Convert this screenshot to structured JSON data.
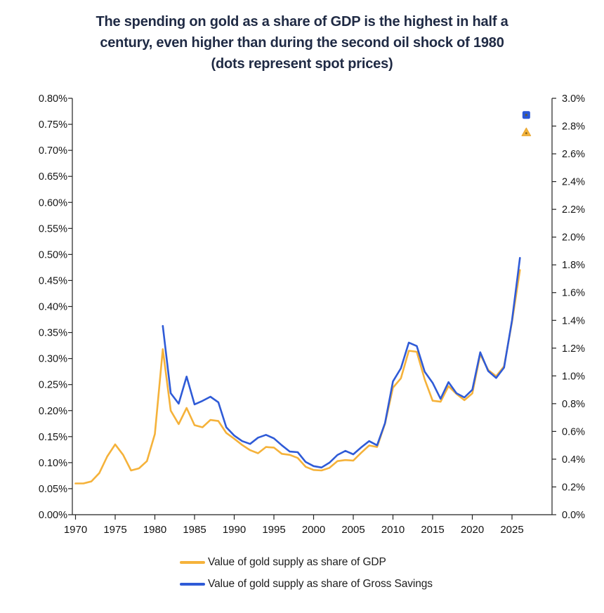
{
  "title": {
    "full": "The spending on gold as a share of GDP is the highest in half a century, even higher than during the second oil shock of 1980 (dots represent spot prices)",
    "lines": [
      "The spending on gold as a share of GDP is the highest in half a",
      "century, even higher than during the second oil shock of 1980",
      "(dots represent spot prices)"
    ]
  },
  "chart_data": {
    "type": "line",
    "title": "The spending on gold as a share of GDP is the highest in half a century, even higher than during the second oil shock of 1980 (dots represent spot prices)",
    "grid": "off",
    "x_ticks": [
      "1970",
      "1975",
      "1980",
      "1985",
      "1990",
      "1995",
      "2000",
      "2005",
      "2010",
      "2015",
      "2020",
      "2025"
    ],
    "left_axis": {
      "range": [
        0,
        0.8
      ],
      "tick_labels": [
        "0.00%",
        "0.05%",
        "0.10%",
        "0.15%",
        "0.20%",
        "0.25%",
        "0.30%",
        "0.35%",
        "0.40%",
        "0.45%",
        "0.50%",
        "0.55%",
        "0.60%",
        "0.65%",
        "0.70%",
        "0.75%",
        "0.80%"
      ]
    },
    "right_axis": {
      "range": [
        0,
        3.0
      ],
      "tick_labels": [
        "0.0%",
        "0.2%",
        "0.4%",
        "0.6%",
        "0.8%",
        "1.0%",
        "1.2%",
        "1.4%",
        "1.6%",
        "1.8%",
        "2.0%",
        "2.2%",
        "2.4%",
        "2.6%",
        "2.8%",
        "3.0%"
      ]
    },
    "series": [
      {
        "name": "Value of gold supply as share of GDP",
        "axis": "left",
        "color": "#F5B23A",
        "start_year": 1970,
        "values": [
          0.06,
          0.06,
          0.064,
          0.08,
          0.112,
          0.135,
          0.115,
          0.085,
          0.089,
          0.103,
          0.155,
          0.318,
          0.2,
          0.174,
          0.205,
          0.172,
          0.168,
          0.182,
          0.18,
          0.157,
          0.146,
          0.134,
          0.124,
          0.118,
          0.13,
          0.129,
          0.117,
          0.115,
          0.109,
          0.092,
          0.086,
          0.085,
          0.09,
          0.103,
          0.105,
          0.104,
          0.119,
          0.133,
          0.13,
          0.175,
          0.244,
          0.262,
          0.315,
          0.313,
          0.26,
          0.219,
          0.217,
          0.247,
          0.232,
          0.22,
          0.233,
          0.308,
          0.278,
          0.266,
          0.285,
          0.37,
          0.47
        ]
      },
      {
        "name": "Value of gold supply as share of Gross Savings",
        "axis": "right",
        "color": "#2F5BD7",
        "start_year": 1981,
        "values": [
          1.36,
          0.875,
          0.8,
          0.995,
          0.795,
          0.82,
          0.85,
          0.81,
          0.63,
          0.57,
          0.53,
          0.51,
          0.555,
          0.575,
          0.55,
          0.5,
          0.455,
          0.45,
          0.38,
          0.35,
          0.34,
          0.375,
          0.43,
          0.46,
          0.435,
          0.485,
          0.53,
          0.5,
          0.66,
          0.96,
          1.055,
          1.24,
          1.215,
          1.03,
          0.95,
          0.835,
          0.955,
          0.875,
          0.845,
          0.9,
          1.17,
          1.035,
          0.985,
          1.06,
          1.4,
          1.85
        ]
      }
    ],
    "spot_dots": [
      {
        "name": "spot price as share of Gross Savings",
        "marker": "square",
        "color": "#2A57D6",
        "axis": "right",
        "year": 2026.8,
        "value": 2.88
      },
      {
        "name": "spot price as share of GDP",
        "marker": "triangle",
        "color": "#F4B33C",
        "axis": "left",
        "year": 2026.8,
        "value": 0.735
      }
    ],
    "legend_position": "bottom"
  },
  "legend": {
    "items": [
      {
        "label": "Value of gold supply as share of GDP",
        "color": "#F5B23A"
      },
      {
        "label": "Value of gold supply as share of Gross Savings",
        "color": "#2F5BD7"
      }
    ]
  },
  "colors": {
    "gdp_line": "#F5B23A",
    "savings_line": "#2F5BD7",
    "title_text": "#1f2a44",
    "axis_line": "#222222",
    "axis_text": "#141414",
    "background": "#ffffff"
  }
}
